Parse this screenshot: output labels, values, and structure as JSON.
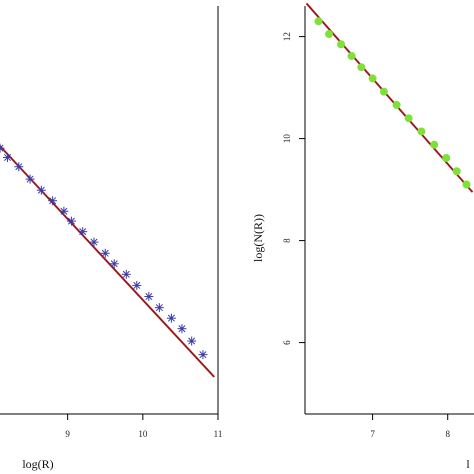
{
  "chart_data": [
    {
      "type": "scatter",
      "xlabel": "log(R)",
      "ylabel": "",
      "xlim": [
        8.1,
        11
      ],
      "ylim": [
        6.0,
        12.6
      ],
      "x_ticks": [
        9,
        10,
        11
      ],
      "y_ticks": [],
      "grid": false,
      "marker": "asterisk",
      "marker_color": "#3a3aa8",
      "fit_color": "#c0282d",
      "points": {
        "x": [
          8.1,
          8.2,
          8.35,
          8.5,
          8.65,
          8.8,
          8.95,
          9.05,
          9.2,
          9.35,
          9.5,
          9.62,
          9.78,
          9.92,
          10.08,
          10.22,
          10.38,
          10.52,
          10.65,
          10.8
        ],
        "y": [
          10.3,
          10.15,
          10.0,
          9.8,
          9.62,
          9.45,
          9.28,
          9.12,
          8.95,
          8.78,
          8.6,
          8.43,
          8.26,
          8.08,
          7.9,
          7.72,
          7.55,
          7.38,
          7.18,
          6.96
        ]
      },
      "fit_line": {
        "x": [
          8.05,
          10.95
        ],
        "y": [
          10.4,
          6.6
        ]
      }
    },
    {
      "type": "scatter",
      "xlabel": "l",
      "ylabel": "log(N(R))",
      "xlim": [
        6.1,
        8.35
      ],
      "ylim": [
        4.6,
        12.6
      ],
      "x_ticks": [
        7,
        8
      ],
      "y_ticks": [
        6,
        8,
        10,
        12
      ],
      "grid": false,
      "marker": "circle",
      "marker_color": "#7ee13a",
      "fit_color": "#c0282d",
      "points": {
        "x": [
          6.28,
          6.42,
          6.58,
          6.72,
          6.85,
          7.0,
          7.15,
          7.32,
          7.48,
          7.65,
          7.82,
          7.98,
          8.12,
          8.25
        ],
        "y": [
          12.3,
          12.05,
          11.85,
          11.62,
          11.4,
          11.18,
          10.92,
          10.66,
          10.4,
          10.14,
          9.88,
          9.62,
          9.36,
          9.1
        ]
      },
      "fit_line": {
        "x": [
          6.12,
          8.33
        ],
        "y": [
          12.65,
          8.95
        ]
      }
    }
  ]
}
